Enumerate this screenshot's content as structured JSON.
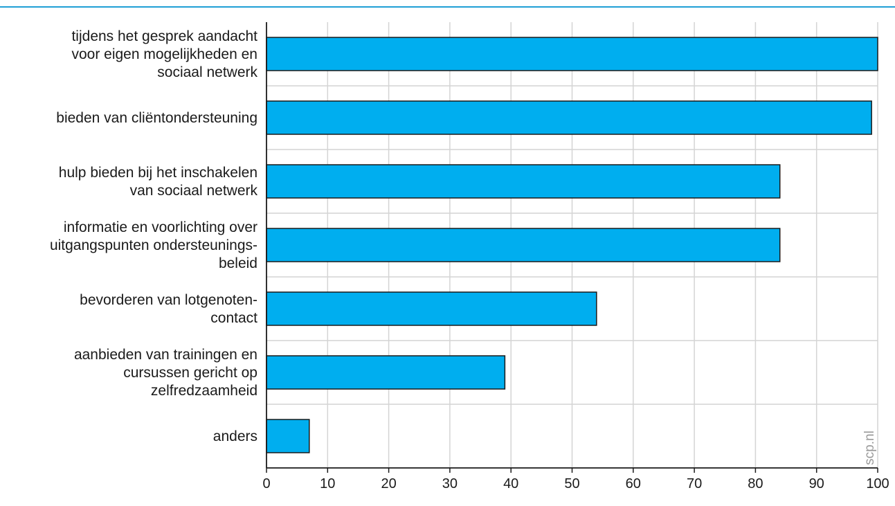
{
  "colors": {
    "bar": "#00aeef",
    "rule": "#1f9fd6",
    "grid": "#d4d4d4"
  },
  "watermark": "scp.nl",
  "chart_data": {
    "type": "bar",
    "orientation": "horizontal",
    "categories": [
      "tijdens het gesprek aandacht voor eigen mogelijkheden en sociaal netwerk",
      "bieden van cliëntondersteuning",
      "hulp bieden bij het inschakelen van sociaal netwerk",
      "informatie en voorlichting over uitgangspunten ondersteuningsbeleid",
      "bevorderen van lotgenotencontact",
      "aanbieden van trainingen en cursussen gericht op zelfredzaamheid",
      "anders"
    ],
    "category_lines": [
      [
        "tijdens het gesprek aandacht",
        "voor eigen mogelijkheden en",
        "sociaal netwerk"
      ],
      [
        "bieden van cliëntondersteuning"
      ],
      [
        "hulp bieden bij het inschakelen",
        "van sociaal netwerk"
      ],
      [
        "informatie en voorlichting over",
        "uitgangspunten ondersteunings-",
        "beleid"
      ],
      [
        "bevorderen van lotgenoten-",
        "contact"
      ],
      [
        "aanbieden van trainingen en",
        "cursussen gericht op",
        "zelfredzaamheid"
      ],
      [
        "anders"
      ]
    ],
    "values": [
      100,
      99,
      84,
      84,
      54,
      39,
      7
    ],
    "xlim": [
      0,
      100
    ],
    "xticks": [
      0,
      10,
      20,
      30,
      40,
      50,
      60,
      70,
      80,
      90,
      100
    ],
    "grid": true,
    "title": "",
    "xlabel": "",
    "ylabel": ""
  }
}
